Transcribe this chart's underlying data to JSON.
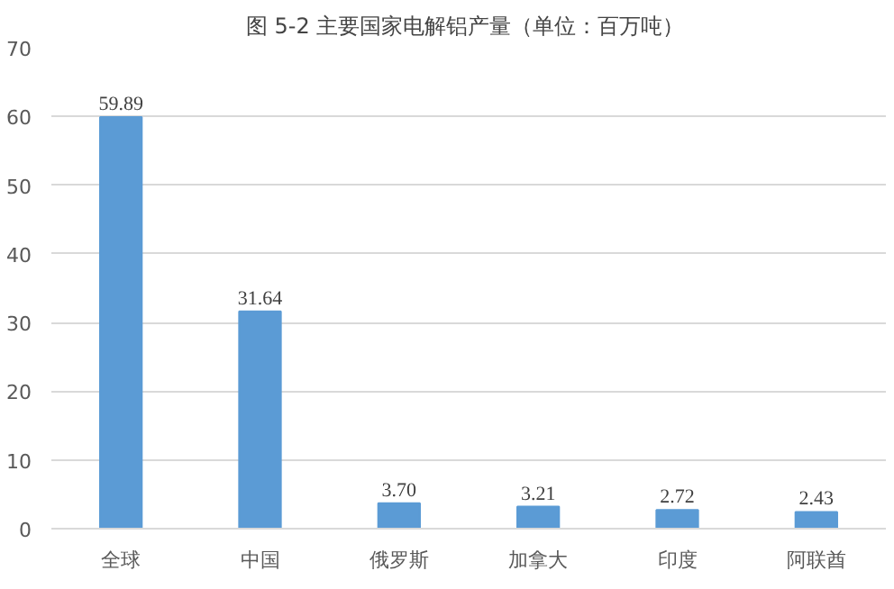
{
  "chart_data": {
    "type": "bar",
    "title": "图 5-2  主要国家电解铝产量（单位：百万吨）",
    "categories": [
      "全球",
      "中国",
      "俄罗斯",
      "加拿大",
      "印度",
      "阿联酋"
    ],
    "values": [
      59.89,
      31.64,
      3.7,
      3.21,
      2.72,
      2.43
    ],
    "value_labels": [
      "59.89",
      "31.64",
      "3.70",
      "3.21",
      "2.72",
      "2.43"
    ],
    "color": "#5b9bd5",
    "ylim": [
      0,
      70
    ],
    "yticks": [
      0,
      10,
      20,
      30,
      40,
      50,
      60,
      70
    ],
    "grid": "y"
  }
}
